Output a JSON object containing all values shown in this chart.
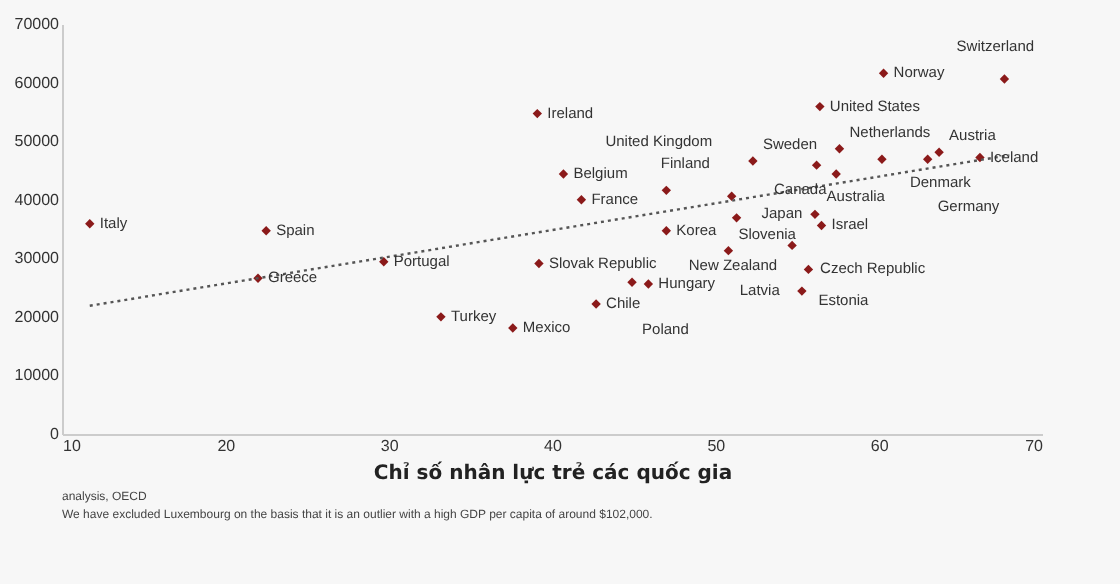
{
  "chart_data": {
    "type": "scatter",
    "xlabel": "Chỉ số nhân lực trẻ các quốc gia",
    "xlim": [
      10,
      70
    ],
    "xticks": [
      10,
      20,
      30,
      40,
      50,
      60,
      70
    ],
    "ylim": [
      0,
      70000
    ],
    "yticks": [
      0,
      10000,
      20000,
      30000,
      40000,
      50000,
      60000,
      70000
    ],
    "series": [
      {
        "type": "scatter",
        "color": "#8b1a1a",
        "marker": "diamond",
        "x": [
          11.7,
          22.5,
          22.0,
          29.7,
          39.1,
          40.7,
          41.8,
          39.2,
          33.2,
          37.6,
          42.7,
          44.9,
          45.9,
          47.0,
          47.0,
          60.3,
          56.4,
          56.2,
          52.3,
          57.6,
          57.4,
          60.2,
          51.0,
          56.1,
          56.5,
          51.3,
          50.8,
          54.7,
          55.7,
          55.3,
          67.7,
          63.7,
          63.0,
          66.2
        ],
        "values": [
          35900,
          34700,
          26600,
          29400,
          54700,
          44400,
          40000,
          29100,
          20000,
          18100,
          22200,
          25900,
          25600,
          41600,
          34700,
          61600,
          55900,
          45900,
          46600,
          48700,
          44400,
          46900,
          40600,
          37500,
          35600,
          36900,
          31300,
          32200,
          28100,
          24400,
          60600,
          48100,
          46900,
          47200
        ]
      },
      {
        "type": "line",
        "color": "#555555",
        "line_style": "dotted",
        "x": [
          11.7,
          68
        ],
        "values": [
          21900,
          47600
        ]
      }
    ],
    "annotations": [
      {
        "text": "Italy",
        "x": 11.7,
        "y": 35900
      },
      {
        "text": "Spain",
        "x": 22.5,
        "y": 34700
      },
      {
        "text": "Greece",
        "x": 22.0,
        "y": 26600
      },
      {
        "text": "Portugal",
        "x": 29.7,
        "y": 29400
      },
      {
        "text": "Ireland",
        "x": 39.1,
        "y": 54700
      },
      {
        "text": "Belgium",
        "x": 40.7,
        "y": 44400
      },
      {
        "text": "France",
        "x": 41.8,
        "y": 40000
      },
      {
        "text": "Slovak Republic",
        "x": 39.2,
        "y": 29100
      },
      {
        "text": "Turkey",
        "x": 33.2,
        "y": 20000
      },
      {
        "text": "Mexico",
        "x": 37.6,
        "y": 18100
      },
      {
        "text": "Chile",
        "x": 42.7,
        "y": 22200
      },
      {
        "text": "Poland",
        "x": 44.9,
        "y": 25900
      },
      {
        "text": "Hungary",
        "x": 45.9,
        "y": 25600
      },
      {
        "text": "United Kingdom",
        "x": 47.0,
        "y": 41600
      },
      {
        "text": "Korea",
        "x": 47.0,
        "y": 34700
      },
      {
        "text": "Norway",
        "x": 60.3,
        "y": 61600
      },
      {
        "text": "United States",
        "x": 56.4,
        "y": 55900
      },
      {
        "text": "Australia",
        "x": 56.2,
        "y": 45900
      },
      {
        "text": "Sweden",
        "x": 52.3,
        "y": 46600
      },
      {
        "text": "Netherlands",
        "x": 57.6,
        "y": 48700
      },
      {
        "text": "Canada",
        "x": 57.4,
        "y": 44400
      },
      {
        "text": "Denmark",
        "x": 60.2,
        "y": 46900
      },
      {
        "text": "Finland",
        "x": 51.0,
        "y": 40600
      },
      {
        "text": "Japan",
        "x": 56.1,
        "y": 37500
      },
      {
        "text": "Israel",
        "x": 56.5,
        "y": 35600
      },
      {
        "text": "New Zealand",
        "x": 51.3,
        "y": 36900
      },
      {
        "text": "Slovenia",
        "x": 50.8,
        "y": 31300
      },
      {
        "text": "Czech Republic",
        "x": 54.7,
        "y": 32200
      },
      {
        "text": "Estonia",
        "x": 55.7,
        "y": 28100
      },
      {
        "text": "Latvia",
        "x": 55.3,
        "y": 24400
      },
      {
        "text": "Switzerland",
        "x": 67.7,
        "y": 60600
      },
      {
        "text": "Austria",
        "x": 63.7,
        "y": 48100
      },
      {
        "text": "Germany",
        "x": 63.0,
        "y": 46900
      },
      {
        "text": "Iceland",
        "x": 66.2,
        "y": 47200
      },
      "analysis, OECD",
      "We have excluded Luxembourg on the basis that it is an outlier with a high GDP per capita of around $102,000."
    ]
  }
}
